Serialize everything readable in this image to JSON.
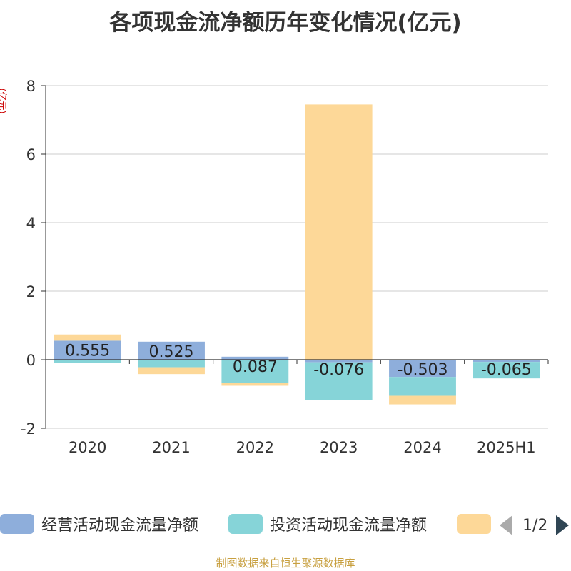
{
  "title": "各项现金流净额历年变化情况(亿元)",
  "y_unit_label": "(亿元)",
  "footer": "制图数据来自恒生聚源数据库",
  "legend": {
    "items": [
      {
        "label": "经营活动现金流量净额",
        "color": "#8eaedb"
      },
      {
        "label": "投资活动现金流量净额",
        "color": "#86d4d8"
      },
      {
        "label": "",
        "color": "#fdd898"
      }
    ],
    "page_text": "1/2"
  },
  "chart_data": {
    "type": "bar",
    "stacked": true,
    "categories": [
      "2020",
      "2021",
      "2022",
      "2023",
      "2024",
      "2025H1"
    ],
    "series": [
      {
        "name": "经营活动现金流量净额",
        "color": "#8eaedb",
        "values": [
          0.555,
          0.525,
          0.087,
          -0.076,
          -0.503,
          -0.065
        ],
        "labels": [
          "0.555",
          "0.525",
          "0.087",
          "-0.076",
          "-0.503",
          "-0.065"
        ]
      },
      {
        "name": "投资活动现金流量净额",
        "color": "#86d4d8",
        "values": [
          -0.1,
          -0.22,
          -0.68,
          -1.1,
          -0.55,
          -0.48
        ]
      },
      {
        "name": "",
        "color": "#fdd898",
        "values": [
          0.18,
          -0.2,
          -0.08,
          7.45,
          -0.25,
          0.0
        ]
      }
    ],
    "ylim": [
      -2,
      8
    ],
    "yticks": [
      -2,
      0,
      2,
      4,
      6,
      8
    ],
    "grid": true,
    "legend_position": "bottom"
  }
}
